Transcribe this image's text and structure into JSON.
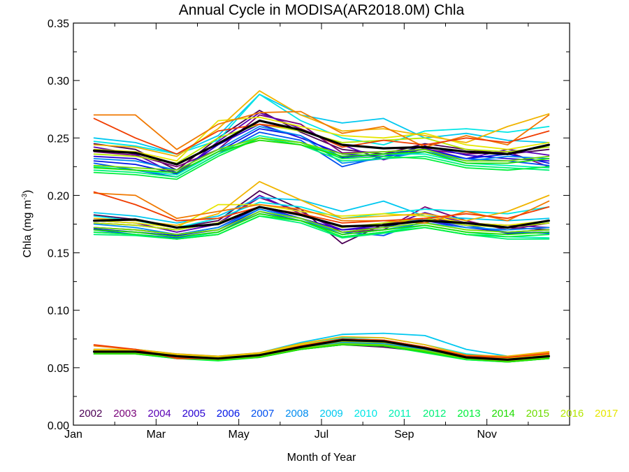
{
  "chart_data": {
    "type": "line",
    "title": "Annual Cycle in MODISA(AR2018.0M) Chla",
    "xlabel": "Month of Year",
    "ylabel": "Chla (mg m",
    "ylabel_sup": "-3",
    "ylabel_close": ")",
    "xlim": [
      1,
      13
    ],
    "ylim": [
      0.0,
      0.35
    ],
    "x_ticks": [
      {
        "value": 1,
        "label": "Jan"
      },
      {
        "value": 3,
        "label": "Mar"
      },
      {
        "value": 5,
        "label": "May"
      },
      {
        "value": 7,
        "label": "Jul"
      },
      {
        "value": 9,
        "label": "Sep"
      },
      {
        "value": 11,
        "label": "Nov"
      }
    ],
    "y_ticks": [
      {
        "value": 0.0,
        "label": "0.00"
      },
      {
        "value": 0.05,
        "label": "0.05"
      },
      {
        "value": 0.1,
        "label": "0.10"
      },
      {
        "value": 0.15,
        "label": "0.15"
      },
      {
        "value": 0.2,
        "label": "0.20"
      },
      {
        "value": 0.25,
        "label": "0.25"
      },
      {
        "value": 0.3,
        "label": "0.30"
      },
      {
        "value": 0.35,
        "label": "0.35"
      }
    ],
    "x": [
      1.5,
      2.5,
      3.5,
      4.5,
      5.5,
      6.5,
      7.5,
      8.5,
      9.5,
      10.5,
      11.5,
      12.5
    ],
    "legend_position": "bottom",
    "series": [
      {
        "name": "2002",
        "color": "#4b0055",
        "upper": [
          0.245,
          0.24,
          0.222,
          0.25,
          0.274,
          0.255,
          0.24,
          0.236,
          0.245,
          0.24,
          0.236,
          0.24
        ],
        "middle": [
          0.183,
          0.179,
          0.172,
          0.178,
          0.204,
          0.188,
          0.158,
          0.175,
          0.18,
          0.176,
          0.172,
          0.17
        ],
        "lower": [
          null,
          null,
          null,
          null,
          null,
          0.067,
          0.07,
          0.068,
          0.064,
          0.058,
          0.057,
          0.06
        ]
      },
      {
        "name": "2003",
        "color": "#780078",
        "upper": [
          0.238,
          0.235,
          0.225,
          0.24,
          0.27,
          0.262,
          0.237,
          0.238,
          0.24,
          0.236,
          0.238,
          0.225
        ],
        "middle": [
          0.176,
          0.174,
          0.17,
          0.176,
          0.198,
          0.186,
          0.168,
          0.17,
          0.19,
          0.178,
          0.17,
          0.176
        ],
        "lower": [
          0.064,
          0.064,
          0.06,
          0.058,
          0.061,
          0.068,
          0.073,
          0.072,
          0.067,
          0.061,
          0.058,
          0.06
        ]
      },
      {
        "name": "2004",
        "color": "#5a00b4",
        "upper": [
          0.242,
          0.236,
          0.218,
          0.247,
          0.272,
          0.258,
          0.244,
          0.231,
          0.241,
          0.232,
          0.24,
          0.235
        ],
        "middle": [
          0.178,
          0.176,
          0.168,
          0.175,
          0.2,
          0.184,
          0.17,
          0.172,
          0.185,
          0.176,
          0.174,
          0.172
        ],
        "lower": [
          0.066,
          0.065,
          0.061,
          0.059,
          0.062,
          0.07,
          0.074,
          0.073,
          0.068,
          0.06,
          0.058,
          0.061
        ]
      },
      {
        "name": "2005",
        "color": "#2800d2",
        "upper": [
          0.234,
          0.232,
          0.22,
          0.244,
          0.262,
          0.25,
          0.236,
          0.234,
          0.243,
          0.235,
          0.232,
          0.23
        ],
        "middle": [
          0.172,
          0.17,
          0.166,
          0.172,
          0.19,
          0.18,
          0.17,
          0.174,
          0.178,
          0.172,
          0.168,
          0.17
        ],
        "lower": [
          0.065,
          0.064,
          0.06,
          0.058,
          0.06,
          0.068,
          0.072,
          0.071,
          0.066,
          0.059,
          0.057,
          0.06
        ]
      },
      {
        "name": "2006",
        "color": "#0014e6",
        "upper": [
          0.23,
          0.227,
          0.219,
          0.238,
          0.258,
          0.252,
          0.233,
          0.236,
          0.24,
          0.232,
          0.236,
          0.228
        ],
        "middle": [
          0.171,
          0.168,
          0.165,
          0.17,
          0.188,
          0.18,
          0.168,
          0.172,
          0.18,
          0.174,
          0.167,
          0.168
        ],
        "lower": [
          0.064,
          0.063,
          0.059,
          0.058,
          0.06,
          0.067,
          0.071,
          0.07,
          0.066,
          0.059,
          0.057,
          0.059
        ]
      },
      {
        "name": "2007",
        "color": "#0050f0",
        "upper": [
          0.228,
          0.222,
          0.216,
          0.236,
          0.255,
          0.248,
          0.225,
          0.234,
          0.238,
          0.232,
          0.23,
          0.226
        ],
        "middle": [
          0.17,
          0.166,
          0.163,
          0.168,
          0.186,
          0.178,
          0.168,
          0.165,
          0.178,
          0.174,
          0.168,
          0.167
        ],
        "lower": [
          0.063,
          0.063,
          0.059,
          0.057,
          0.06,
          0.066,
          0.07,
          0.07,
          0.065,
          0.058,
          0.056,
          0.059
        ]
      },
      {
        "name": "2008",
        "color": "#008cf0",
        "upper": [
          0.232,
          0.23,
          0.222,
          0.24,
          0.26,
          0.252,
          0.228,
          0.232,
          0.238,
          0.23,
          0.234,
          0.232
        ],
        "middle": [
          0.175,
          0.172,
          0.166,
          0.172,
          0.188,
          0.18,
          0.166,
          0.17,
          0.176,
          0.172,
          0.17,
          0.172
        ],
        "lower": [
          0.064,
          0.064,
          0.06,
          0.058,
          0.061,
          0.068,
          0.072,
          0.071,
          0.066,
          0.059,
          0.057,
          0.06
        ]
      },
      {
        "name": "2009",
        "color": "#00c8f0",
        "upper": [
          0.25,
          0.246,
          0.236,
          0.252,
          0.288,
          0.27,
          0.263,
          0.267,
          0.25,
          0.254,
          0.248,
          0.246
        ],
        "middle": [
          0.185,
          0.182,
          0.176,
          0.182,
          0.198,
          0.196,
          0.186,
          0.195,
          0.182,
          0.18,
          0.178,
          0.18
        ],
        "lower": [
          0.066,
          0.066,
          0.062,
          0.06,
          0.063,
          0.072,
          0.079,
          0.08,
          0.078,
          0.066,
          0.06,
          0.062
        ]
      },
      {
        "name": "2010",
        "color": "#00e6e6",
        "upper": [
          0.247,
          0.243,
          0.236,
          0.248,
          0.288,
          0.265,
          0.25,
          0.244,
          0.256,
          0.258,
          0.255,
          0.26
        ],
        "middle": [
          0.182,
          0.178,
          0.172,
          0.18,
          0.194,
          0.19,
          0.18,
          0.184,
          0.188,
          0.186,
          0.184,
          0.19
        ],
        "lower": [
          0.065,
          0.065,
          0.061,
          0.059,
          0.062,
          0.07,
          0.076,
          0.076,
          0.07,
          0.062,
          0.059,
          0.061
        ]
      },
      {
        "name": "2011",
        "color": "#00f0b4",
        "upper": [
          0.225,
          0.222,
          0.218,
          0.238,
          0.252,
          0.246,
          0.234,
          0.236,
          0.236,
          0.228,
          0.226,
          0.224
        ],
        "middle": [
          0.168,
          0.166,
          0.162,
          0.168,
          0.184,
          0.178,
          0.164,
          0.168,
          0.174,
          0.168,
          0.164,
          0.163
        ],
        "lower": [
          0.063,
          0.063,
          0.059,
          0.057,
          0.06,
          0.067,
          0.071,
          0.07,
          0.064,
          0.058,
          0.056,
          0.058
        ]
      },
      {
        "name": "2012",
        "color": "#00f078",
        "upper": [
          0.222,
          0.22,
          0.216,
          0.236,
          0.25,
          0.244,
          0.23,
          0.232,
          0.234,
          0.226,
          0.224,
          0.222
        ],
        "middle": [
          0.166,
          0.165,
          0.162,
          0.166,
          0.182,
          0.176,
          0.163,
          0.167,
          0.172,
          0.166,
          0.162,
          0.162
        ],
        "lower": [
          0.062,
          0.062,
          0.058,
          0.057,
          0.059,
          0.066,
          0.07,
          0.069,
          0.064,
          0.057,
          0.055,
          0.058
        ]
      },
      {
        "name": "2013",
        "color": "#00f03c",
        "upper": [
          0.22,
          0.218,
          0.214,
          0.234,
          0.25,
          0.246,
          0.232,
          0.234,
          0.232,
          0.224,
          0.222,
          0.225
        ],
        "middle": [
          0.168,
          0.166,
          0.162,
          0.166,
          0.182,
          0.178,
          0.164,
          0.168,
          0.172,
          0.166,
          0.164,
          0.166
        ],
        "lower": [
          0.062,
          0.062,
          0.058,
          0.056,
          0.059,
          0.066,
          0.07,
          0.069,
          0.063,
          0.057,
          0.055,
          0.058
        ]
      },
      {
        "name": "2014",
        "color": "#1edc00",
        "upper": [
          0.224,
          0.222,
          0.22,
          0.238,
          0.248,
          0.244,
          0.234,
          0.236,
          0.238,
          0.228,
          0.228,
          0.232
        ],
        "middle": [
          0.17,
          0.168,
          0.164,
          0.168,
          0.184,
          0.178,
          0.166,
          0.17,
          0.174,
          0.168,
          0.166,
          0.168
        ],
        "lower": [
          0.062,
          0.062,
          0.059,
          0.057,
          0.059,
          0.066,
          0.07,
          0.069,
          0.064,
          0.058,
          0.055,
          0.058
        ]
      },
      {
        "name": "2015",
        "color": "#6edc00",
        "upper": [
          0.226,
          0.224,
          0.222,
          0.24,
          0.25,
          0.246,
          0.236,
          0.238,
          0.24,
          0.23,
          0.23,
          0.234
        ],
        "middle": [
          0.172,
          0.17,
          0.166,
          0.17,
          0.186,
          0.18,
          0.168,
          0.172,
          0.176,
          0.17,
          0.168,
          0.17
        ],
        "lower": [
          0.063,
          0.063,
          0.059,
          0.057,
          0.06,
          0.067,
          0.071,
          0.07,
          0.065,
          0.058,
          0.056,
          0.059
        ]
      },
      {
        "name": "2016",
        "color": "#b4e600",
        "upper": [
          0.236,
          0.234,
          0.228,
          0.25,
          0.262,
          0.256,
          0.246,
          0.248,
          0.25,
          0.24,
          0.238,
          0.242
        ],
        "middle": [
          0.176,
          0.174,
          0.17,
          0.176,
          0.19,
          0.184,
          0.172,
          0.176,
          0.18,
          0.174,
          0.172,
          0.176
        ],
        "lower": [
          0.064,
          0.064,
          0.06,
          0.058,
          0.061,
          0.068,
          0.073,
          0.072,
          0.067,
          0.059,
          0.057,
          0.06
        ]
      },
      {
        "name": "2017",
        "color": "#e6e600",
        "upper": [
          0.24,
          0.238,
          0.23,
          0.265,
          0.268,
          0.26,
          0.252,
          0.25,
          0.254,
          0.244,
          0.24,
          0.246
        ],
        "middle": [
          0.178,
          0.176,
          0.172,
          0.192,
          0.192,
          0.186,
          0.182,
          0.184,
          0.182,
          0.176,
          0.174,
          0.178
        ],
        "lower": [
          0.065,
          0.065,
          0.061,
          0.059,
          0.062,
          0.07,
          0.075,
          0.074,
          0.068,
          0.06,
          0.058,
          0.061
        ]
      },
      {
        "name": "",
        "color": "#f0b400",
        "upper": [
          0.244,
          0.242,
          0.234,
          0.258,
          0.291,
          0.27,
          0.256,
          0.258,
          0.252,
          0.246,
          0.26,
          0.271
        ],
        "middle": [
          0.18,
          0.178,
          0.174,
          0.184,
          0.212,
          0.196,
          0.18,
          0.182,
          0.184,
          0.178,
          0.186,
          0.2
        ],
        "lower": [
          0.066,
          0.066,
          0.062,
          0.06,
          0.063,
          0.071,
          0.077,
          0.076,
          0.07,
          0.061,
          0.06,
          0.064
        ]
      },
      {
        "name": "",
        "color": "#f07800",
        "upper": [
          0.27,
          0.27,
          0.24,
          0.262,
          0.272,
          0.273,
          0.254,
          0.26,
          0.242,
          0.252,
          0.244,
          0.27
        ],
        "middle": [
          0.202,
          0.2,
          0.18,
          0.186,
          0.192,
          0.188,
          0.178,
          0.178,
          0.176,
          0.186,
          0.178,
          0.195
        ],
        "lower": [
          0.069,
          0.066,
          0.059,
          0.058,
          0.061,
          0.069,
          0.075,
          0.074,
          0.068,
          0.061,
          0.059,
          0.063
        ]
      },
      {
        "name": "",
        "color": "#f03c00",
        "upper": [
          0.267,
          0.25,
          0.236,
          0.256,
          0.262,
          0.258,
          0.242,
          0.248,
          0.244,
          0.25,
          0.246,
          0.256
        ],
        "middle": [
          0.203,
          0.192,
          0.178,
          0.18,
          0.19,
          0.184,
          0.176,
          0.178,
          0.18,
          0.184,
          0.18,
          0.19
        ],
        "lower": [
          0.07,
          0.066,
          0.058,
          0.058,
          0.061,
          0.069,
          0.075,
          0.074,
          0.068,
          0.06,
          0.059,
          0.062
        ]
      },
      {
        "name": "",
        "color": "#000000",
        "width": 3.2,
        "upper": [
          0.239,
          0.237,
          0.227,
          0.245,
          0.265,
          0.257,
          0.244,
          0.241,
          0.242,
          0.238,
          0.236,
          0.244
        ],
        "middle": [
          0.178,
          0.179,
          0.172,
          0.175,
          0.19,
          0.183,
          0.173,
          0.174,
          0.178,
          0.176,
          0.172,
          0.178
        ],
        "lower": [
          0.064,
          0.064,
          0.06,
          0.058,
          0.061,
          0.068,
          0.074,
          0.073,
          0.067,
          0.059,
          0.057,
          0.06
        ]
      }
    ]
  }
}
